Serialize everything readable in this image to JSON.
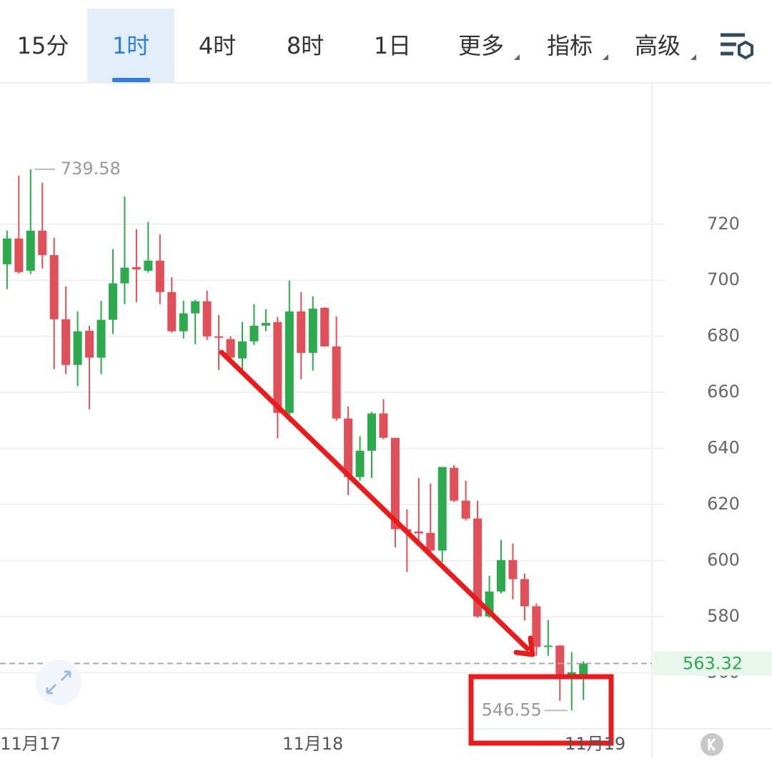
{
  "toolbar": {
    "tabs": [
      "15分",
      "1时",
      "4时",
      "8时",
      "1日",
      "更多",
      "指标",
      "高级"
    ],
    "active": 1
  },
  "chart_data": {
    "type": "candlestick",
    "colors": {
      "up": "#2eaa4e",
      "down": "#e0505a"
    },
    "open": [
      705.7,
      714.9,
      703.4,
      717.7,
      709.0,
      686.1,
      669.8,
      682.0,
      672.4,
      685.9,
      698.9,
      704.7,
      703.4,
      707.0,
      695.8,
      681.8,
      688.2,
      692.5,
      680.0,
      679.0,
      672.1,
      678.2,
      683.8,
      685.1,
      652.7,
      688.9,
      674.1,
      690.2,
      676.4,
      650.7,
      629.8,
      639.2,
      652.5,
      643.8,
      611.2,
      610.4,
      609.9,
      603.6,
      633.1,
      621.4,
      615.0,
      580.1,
      589.0,
      600.2,
      593.4,
      583.7,
      569.2,
      569.7,
      559.0,
      559.0
    ],
    "high": [
      717.7,
      737.3,
      739.58,
      734.8,
      715.2,
      697.8,
      688.9,
      683.8,
      692.7,
      711.1,
      729.9,
      718.2,
      720.8,
      716.4,
      701.1,
      692.7,
      693.0,
      696.3,
      687.6,
      680.0,
      685.1,
      691.5,
      689.7,
      686.9,
      699.9,
      695.8,
      694.3,
      690.4,
      687.1,
      655.0,
      644.3,
      653.0,
      657.6,
      643.8,
      618.3,
      629.5,
      627.5,
      633.4,
      634.1,
      628.5,
      621.4,
      594.6,
      607.4,
      606.1,
      595.4,
      584.7,
      578.8,
      569.9,
      567.4,
      564.1
    ],
    "low": [
      696.8,
      702.4,
      702.2,
      704.2,
      668.3,
      666.5,
      662.2,
      654.0,
      666.5,
      680.8,
      691.5,
      692.2,
      702.7,
      691.5,
      681.3,
      679.2,
      677.2,
      678.7,
      668.0,
      671.1,
      667.8,
      676.9,
      681.8,
      643.6,
      649.4,
      664.7,
      667.8,
      676.4,
      649.9,
      623.4,
      628.5,
      629.5,
      643.3,
      604.8,
      595.9,
      606.1,
      602.8,
      599.5,
      620.9,
      614.3,
      579.6,
      579.6,
      588.3,
      586.2,
      578.6,
      566.1,
      566.1,
      550.0,
      546.55,
      550.3
    ],
    "close": [
      714.9,
      702.9,
      717.7,
      709.0,
      686.1,
      669.8,
      681.8,
      672.4,
      685.9,
      698.9,
      704.5,
      703.9,
      707.0,
      695.8,
      681.8,
      688.2,
      692.5,
      680.0,
      679.5,
      672.4,
      678.2,
      683.8,
      684.8,
      652.7,
      688.9,
      674.1,
      689.9,
      676.4,
      650.7,
      629.8,
      639.2,
      652.5,
      643.8,
      611.2,
      610.2,
      609.7,
      603.6,
      633.4,
      621.4,
      615.0,
      580.1,
      589.0,
      600.2,
      593.4,
      583.7,
      569.2,
      569.7,
      559.0,
      560.2,
      563.32
    ],
    "xlim": [
      -0.6,
      54.7
    ],
    "xticks": [
      {
        "value": 2,
        "label": "11月17"
      },
      {
        "value": 26,
        "label": "11月18"
      },
      {
        "value": 50,
        "label": "11月19"
      }
    ],
    "ylim": [
      540,
      770.4
    ],
    "yticks": [
      560,
      580,
      600,
      620,
      640,
      660,
      680,
      700,
      720
    ],
    "grid": true
  }
}
